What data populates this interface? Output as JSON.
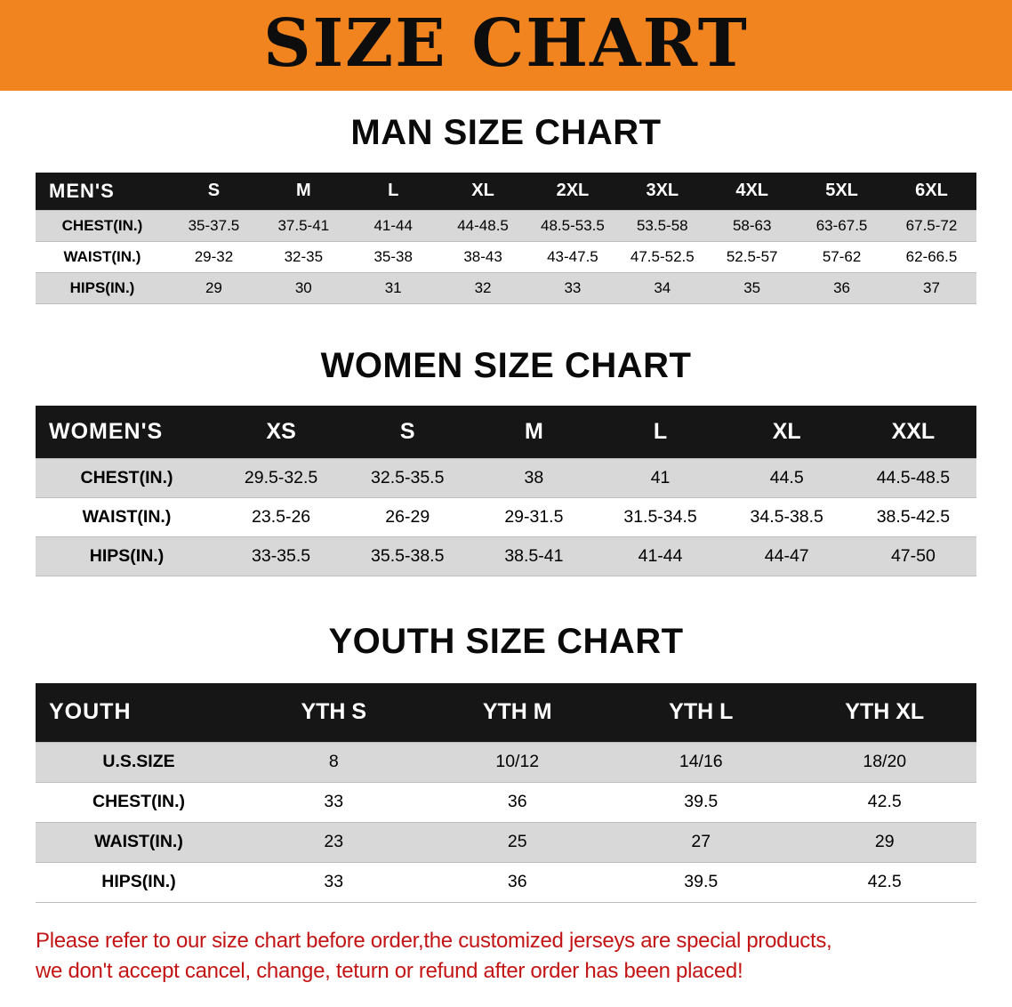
{
  "banner": {
    "title": "SIZE CHART"
  },
  "colors": {
    "banner-bg": "#f1841f",
    "header-bg": "#161616",
    "row-gray": "#d8d8d8",
    "note-red": "#c31515"
  },
  "sections": [
    {
      "title": "MAN SIZE CHART",
      "header": [
        "MEN'S",
        "S",
        "M",
        "L",
        "XL",
        "2XL",
        "3XL",
        "4XL",
        "5XL",
        "6XL"
      ],
      "rows": [
        [
          "CHEST(IN.)",
          "35-37.5",
          "37.5-41",
          "41-44",
          "44-48.5",
          "48.5-53.5",
          "53.5-58",
          "58-63",
          "63-67.5",
          "67.5-72"
        ],
        [
          "WAIST(IN.)",
          "29-32",
          "32-35",
          "35-38",
          "38-43",
          "43-47.5",
          "47.5-52.5",
          "52.5-57",
          "57-62",
          "62-66.5"
        ],
        [
          "HIPS(IN.)",
          "29",
          "30",
          "31",
          "32",
          "33",
          "34",
          "35",
          "36",
          "37"
        ]
      ]
    },
    {
      "title": "WOMEN SIZE CHART",
      "header": [
        "WOMEN'S",
        "XS",
        "S",
        "M",
        "L",
        "XL",
        "XXL"
      ],
      "rows": [
        [
          "CHEST(IN.)",
          "29.5-32.5",
          "32.5-35.5",
          "38",
          "41",
          "44.5",
          "44.5-48.5"
        ],
        [
          "WAIST(IN.)",
          "23.5-26",
          "26-29",
          "29-31.5",
          "31.5-34.5",
          "34.5-38.5",
          "38.5-42.5"
        ],
        [
          "HIPS(IN.)",
          "33-35.5",
          "35.5-38.5",
          "38.5-41",
          "41-44",
          "44-47",
          "47-50"
        ]
      ]
    },
    {
      "title": "YOUTH SIZE CHART",
      "header": [
        "YOUTH",
        "YTH S",
        "YTH M",
        "YTH L",
        "YTH XL"
      ],
      "rows": [
        [
          "U.S.SIZE",
          "8",
          "10/12",
          "14/16",
          "18/20"
        ],
        [
          "CHEST(IN.)",
          "33",
          "36",
          "39.5",
          "42.5"
        ],
        [
          "WAIST(IN.)",
          "23",
          "25",
          "27",
          "29"
        ],
        [
          "HIPS(IN.)",
          "33",
          "36",
          "39.5",
          "42.5"
        ]
      ]
    }
  ],
  "footer": {
    "line1": "Please refer to our size chart before order,the customized jerseys are special products,",
    "line2": "we don't accept cancel, change, teturn or refund after order has been placed!"
  }
}
